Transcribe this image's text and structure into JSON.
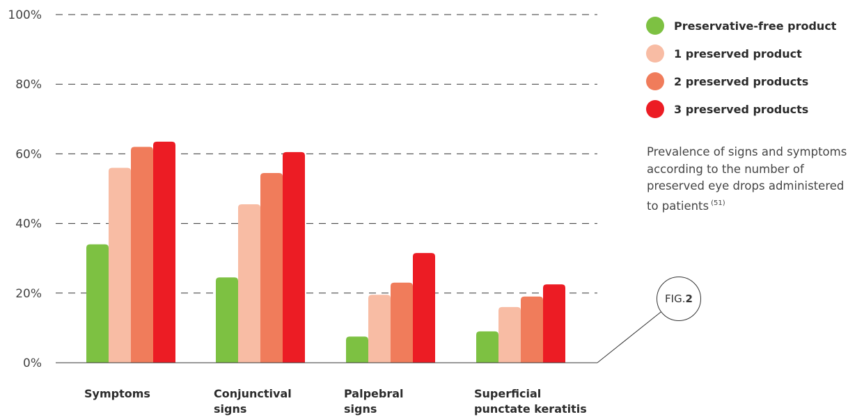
{
  "chart_data": {
    "type": "bar",
    "categories": [
      [
        "Symptoms"
      ],
      [
        "Conjunctival",
        "signs"
      ],
      [
        "Palpebral",
        "signs"
      ],
      [
        "Superficial",
        "punctate keratitis"
      ]
    ],
    "series": [
      {
        "name": "Preservative-free product",
        "color": "#7dc142",
        "values": [
          34,
          24.5,
          7.5,
          9
        ]
      },
      {
        "name": "1 preserved product",
        "color": "#f8bca4",
        "values": [
          56,
          45.5,
          19.5,
          16
        ]
      },
      {
        "name": "2 preserved products",
        "color": "#f07c5b",
        "values": [
          62,
          54.5,
          23,
          19
        ]
      },
      {
        "name": "3 preserved products",
        "color": "#ec1c24",
        "values": [
          63.5,
          60.5,
          31.5,
          22.5
        ]
      }
    ],
    "yticks": [
      "0%",
      "20%",
      "40%",
      "60%",
      "80%",
      "100%"
    ],
    "ylim": [
      0,
      100
    ],
    "grid": "dashed horizontal",
    "legend": "top-right",
    "xlabel": "",
    "ylabel": ""
  },
  "caption": {
    "text": "Prevalence of signs and symptoms according to the number of preserved eye drops administered to patients",
    "ref": "(51)"
  },
  "figure": {
    "prefix": "FIG.",
    "number": "2"
  }
}
